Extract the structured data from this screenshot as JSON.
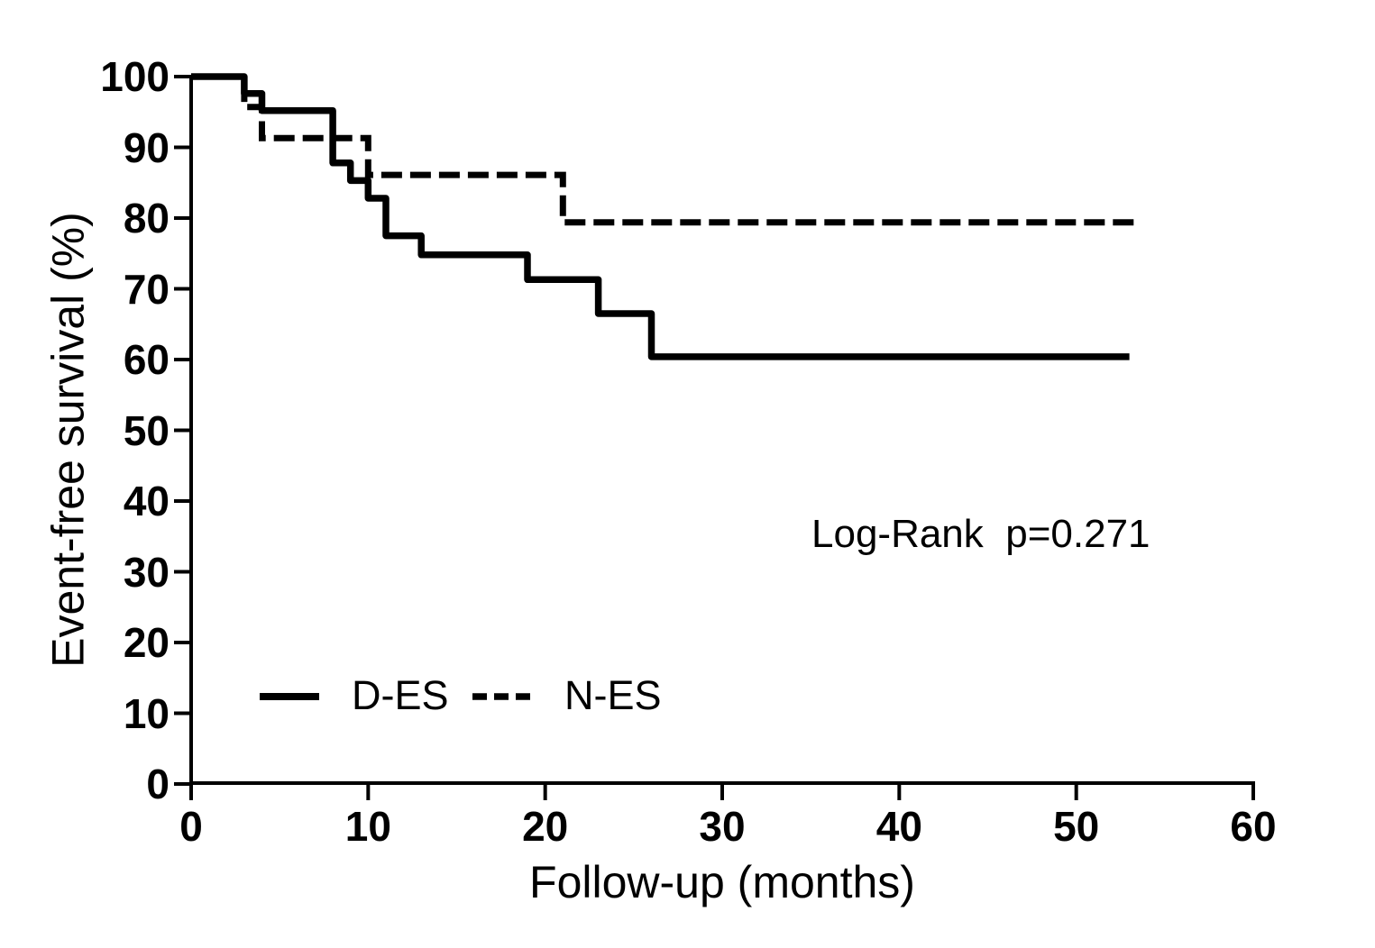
{
  "chart_data": {
    "type": "line",
    "subtype": "kaplan-meier-step",
    "title": "",
    "xlabel": "Follow-up (months)",
    "ylabel": "Event-free survival (%)",
    "xlim": [
      0,
      60
    ],
    "ylim": [
      0,
      100
    ],
    "x_ticks": [
      0,
      10,
      20,
      30,
      40,
      50,
      60
    ],
    "y_ticks": [
      0,
      10,
      20,
      30,
      40,
      50,
      60,
      70,
      80,
      90,
      100
    ],
    "grid": false,
    "legend": {
      "position": "inside-lower-left"
    },
    "annotation": {
      "text": "Log-Rank  p=0.271"
    },
    "series": [
      {
        "name": "D-ES",
        "style": "solid",
        "color": "#000000",
        "points": [
          [
            0,
            100
          ],
          [
            3,
            97.6
          ],
          [
            4,
            95.2
          ],
          [
            8,
            87.8
          ],
          [
            9,
            85.3
          ],
          [
            10,
            82.8
          ],
          [
            11,
            77.5
          ],
          [
            13,
            74.8
          ],
          [
            19,
            71.3
          ],
          [
            23,
            66.5
          ],
          [
            26,
            60.4
          ],
          [
            53,
            60.4
          ]
        ]
      },
      {
        "name": "N-ES",
        "style": "dashed",
        "color": "#000000",
        "points": [
          [
            0,
            100
          ],
          [
            3,
            95.7
          ],
          [
            4,
            91.3
          ],
          [
            10,
            86.1
          ],
          [
            21,
            79.4
          ],
          [
            53.7,
            79.4
          ]
        ]
      }
    ]
  }
}
